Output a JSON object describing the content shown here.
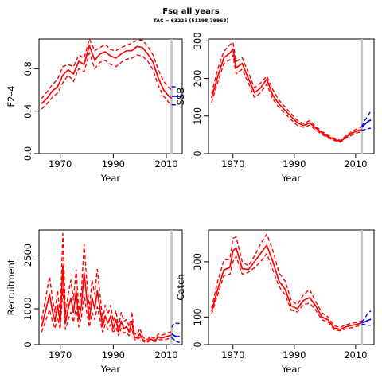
{
  "header": {
    "title": "Fsq all years",
    "subtitle": "TAC = 63225 (51198;79968)"
  },
  "colors": {
    "history": "#ff0000",
    "forecast": "#0000ff",
    "marker": "#c8c8c8"
  },
  "chart_data": [
    {
      "type": "line",
      "id": "fbar",
      "ylabel": "F̄2–4",
      "xlabel": "Year",
      "xlim": [
        1962,
        2016
      ],
      "ylim": [
        0,
        1.08
      ],
      "xticks": [
        1970,
        1990,
        2010
      ],
      "yticks": [
        0,
        0.4,
        0.8
      ],
      "ytick_labels": [
        "0.0",
        "0.4",
        "0.8"
      ],
      "marker_year": 2012,
      "series": [
        {
          "role": "history-median",
          "x": [
            1963,
            1965,
            1967,
            1969,
            1971,
            1973,
            1975,
            1977,
            1979,
            1981,
            1983,
            1985,
            1987,
            1989,
            1991,
            1993,
            1995,
            1997,
            1999,
            2001,
            2003,
            2005,
            2007,
            2009,
            2011,
            2012
          ],
          "y": [
            0.47,
            0.52,
            0.59,
            0.63,
            0.74,
            0.79,
            0.75,
            0.87,
            0.84,
            1.02,
            0.88,
            0.94,
            0.96,
            0.92,
            0.9,
            0.94,
            0.97,
            0.97,
            1.01,
            1.0,
            0.94,
            0.86,
            0.71,
            0.6,
            0.54,
            0.52
          ]
        },
        {
          "role": "history-upper",
          "x": [
            1963,
            1965,
            1967,
            1969,
            1971,
            1973,
            1975,
            1977,
            1979,
            1981,
            1983,
            1985,
            1987,
            1989,
            1991,
            1993,
            1995,
            1997,
            1999,
            2001,
            2003,
            2005,
            2007,
            2009,
            2011,
            2012
          ],
          "y": [
            0.52,
            0.58,
            0.65,
            0.7,
            0.82,
            0.84,
            0.82,
            0.93,
            0.9,
            1.08,
            0.97,
            1.0,
            1.03,
            0.98,
            0.97,
            1.0,
            1.02,
            1.04,
            1.07,
            1.07,
            1.01,
            0.93,
            0.79,
            0.68,
            0.62,
            0.6
          ]
        },
        {
          "role": "history-lower",
          "x": [
            1963,
            1965,
            1967,
            1969,
            1971,
            1973,
            1975,
            1977,
            1979,
            1981,
            1983,
            1985,
            1987,
            1989,
            1991,
            1993,
            1995,
            1997,
            1999,
            2001,
            2003,
            2005,
            2007,
            2009,
            2011,
            2012
          ],
          "y": [
            0.42,
            0.47,
            0.53,
            0.57,
            0.67,
            0.74,
            0.68,
            0.8,
            0.77,
            0.95,
            0.8,
            0.86,
            0.88,
            0.84,
            0.82,
            0.86,
            0.89,
            0.9,
            0.93,
            0.92,
            0.87,
            0.79,
            0.64,
            0.54,
            0.48,
            0.46
          ]
        },
        {
          "role": "forecast-median",
          "x": [
            2012,
            2016
          ],
          "y": [
            0.54,
            0.54
          ]
        },
        {
          "role": "forecast-upper",
          "x": [
            2012,
            2014
          ],
          "y": [
            0.63,
            0.63
          ]
        },
        {
          "role": "forecast-lower",
          "x": [
            2012,
            2014
          ],
          "y": [
            0.46,
            0.46
          ]
        }
      ]
    },
    {
      "type": "line",
      "id": "ssb",
      "ylabel": "SSB",
      "xlabel": "Year",
      "xlim": [
        1962,
        2016
      ],
      "ylim": [
        0,
        305
      ],
      "xticks": [
        1970,
        1990,
        2010
      ],
      "yticks": [
        0,
        100,
        200,
        300
      ],
      "ytick_labels": [
        "0",
        "100",
        "200",
        "300"
      ],
      "marker_year": 2012,
      "series": [
        {
          "role": "history-median",
          "x": [
            1963,
            1965,
            1967,
            1969,
            1970,
            1971,
            1973,
            1975,
            1977,
            1979,
            1981,
            1983,
            1985,
            1987,
            1989,
            1991,
            1993,
            1995,
            1997,
            1999,
            2001,
            2003,
            2005,
            2007,
            2009,
            2011,
            2012
          ],
          "y": [
            148,
            205,
            255,
            268,
            278,
            228,
            240,
            200,
            162,
            175,
            198,
            155,
            132,
            115,
            98,
            82,
            75,
            82,
            68,
            55,
            45,
            38,
            32,
            45,
            55,
            62,
            64
          ]
        },
        {
          "role": "history-upper",
          "x": [
            1963,
            1965,
            1967,
            1969,
            1970,
            1971,
            1973,
            1975,
            1977,
            1979,
            1981,
            1983,
            1985,
            1987,
            1989,
            1991,
            1993,
            1995,
            1997,
            1999,
            2001,
            2003,
            2005,
            2007,
            2009,
            2011,
            2012
          ],
          "y": [
            160,
            225,
            272,
            290,
            296,
            245,
            255,
            215,
            175,
            188,
            206,
            170,
            142,
            124,
            106,
            88,
            80,
            88,
            72,
            59,
            48,
            41,
            35,
            48,
            60,
            68,
            72
          ]
        },
        {
          "role": "history-lower",
          "x": [
            1963,
            1965,
            1967,
            1969,
            1970,
            1971,
            1973,
            1975,
            1977,
            1979,
            1981,
            1983,
            1985,
            1987,
            1989,
            1991,
            1993,
            1995,
            1997,
            1999,
            2001,
            2003,
            2005,
            2007,
            2009,
            2011,
            2012
          ],
          "y": [
            136,
            190,
            240,
            250,
            262,
            212,
            225,
            188,
            150,
            162,
            185,
            145,
            122,
            106,
            90,
            75,
            70,
            76,
            63,
            51,
            42,
            35,
            30,
            42,
            50,
            57,
            58
          ]
        },
        {
          "role": "forecast-median",
          "x": [
            2012,
            2013,
            2014,
            2015
          ],
          "y": [
            70,
            78,
            85,
            90
          ]
        },
        {
          "role": "forecast-upper",
          "x": [
            2012,
            2013,
            2014,
            2015
          ],
          "y": [
            72,
            88,
            100,
            115
          ]
        },
        {
          "role": "forecast-lower",
          "x": [
            2012,
            2013,
            2014,
            2015
          ],
          "y": [
            62,
            64,
            66,
            68
          ]
        }
      ]
    },
    {
      "type": "line",
      "id": "recruitment",
      "ylabel": "Recruitment",
      "xlabel": "Year",
      "xlim": [
        1962,
        2016
      ],
      "ylim": [
        0,
        3200
      ],
      "xticks": [
        1970,
        1990,
        2010
      ],
      "yticks": [
        0,
        1000,
        2500
      ],
      "ytick_labels": [
        "0",
        "1000",
        "2500"
      ],
      "marker_year": 2012,
      "series": [
        {
          "role": "history-median",
          "x": [
            1963,
            1964,
            1965,
            1966,
            1967,
            1968,
            1969,
            1970,
            1971,
            1972,
            1973,
            1974,
            1975,
            1976,
            1977,
            1978,
            1979,
            1980,
            1981,
            1982,
            1983,
            1984,
            1985,
            1986,
            1987,
            1988,
            1989,
            1990,
            1991,
            1992,
            1993,
            1994,
            1995,
            1996,
            1997,
            1998,
            1999,
            2000,
            2001,
            2002,
            2003,
            2004,
            2005,
            2006,
            2007,
            2008,
            2009,
            2010,
            2011,
            2012
          ],
          "y": [
            500,
            800,
            1100,
            1400,
            950,
            650,
            1100,
            600,
            2200,
            600,
            1000,
            1300,
            900,
            1500,
            700,
            1100,
            2000,
            1300,
            700,
            1300,
            1000,
            1500,
            1000,
            500,
            800,
            600,
            800,
            450,
            700,
            350,
            650,
            450,
            500,
            350,
            650,
            200,
            180,
            300,
            150,
            100,
            100,
            160,
            120,
            130,
            220,
            180,
            200,
            220,
            250,
            260
          ]
        },
        {
          "role": "history-upper",
          "x": [
            1963,
            1964,
            1965,
            1966,
            1967,
            1968,
            1969,
            1970,
            1971,
            1972,
            1973,
            1974,
            1975,
            1976,
            1977,
            1978,
            1979,
            1980,
            1981,
            1982,
            1983,
            1984,
            1985,
            1986,
            1987,
            1988,
            1989,
            1990,
            1991,
            1992,
            1993,
            1994,
            1995,
            1996,
            1997,
            1998,
            1999,
            2000,
            2001,
            2002,
            2003,
            2004,
            2005,
            2006,
            2007,
            2008,
            2009,
            2010,
            2011,
            2012
          ],
          "y": [
            700,
            1100,
            1500,
            1900,
            1300,
            900,
            1500,
            850,
            3100,
            850,
            1400,
            1800,
            1250,
            2100,
            950,
            1500,
            2800,
            1800,
            1000,
            1800,
            1400,
            2100,
            1400,
            700,
            1100,
            850,
            1100,
            650,
            950,
            500,
            900,
            650,
            700,
            500,
            900,
            300,
            280,
            450,
            230,
            150,
            150,
            230,
            180,
            190,
            300,
            260,
            280,
            300,
            340,
            360
          ]
        },
        {
          "role": "history-lower",
          "x": [
            1963,
            1964,
            1965,
            1966,
            1967,
            1968,
            1969,
            1970,
            1971,
            1972,
            1973,
            1974,
            1975,
            1976,
            1977,
            1978,
            1979,
            1980,
            1981,
            1982,
            1983,
            1984,
            1985,
            1986,
            1987,
            1988,
            1989,
            1990,
            1991,
            1992,
            1993,
            1994,
            1995,
            1996,
            1997,
            1998,
            1999,
            2000,
            2001,
            2002,
            2003,
            2004,
            2005,
            2006,
            2007,
            2008,
            2009,
            2010,
            2011,
            2012
          ],
          "y": [
            350,
            560,
            770,
            980,
            660,
            450,
            770,
            420,
            1550,
            420,
            700,
            900,
            630,
            1050,
            490,
            770,
            1400,
            900,
            490,
            900,
            700,
            1050,
            700,
            350,
            560,
            420,
            560,
            320,
            490,
            250,
            450,
            320,
            350,
            250,
            450,
            140,
            130,
            210,
            100,
            70,
            70,
            110,
            80,
            90,
            150,
            130,
            140,
            150,
            170,
            180
          ]
        },
        {
          "role": "forecast-median",
          "x": [
            2012,
            2013,
            2014,
            2015
          ],
          "y": [
            300,
            250,
            220,
            230
          ]
        },
        {
          "role": "forecast-upper",
          "x": [
            2012,
            2013,
            2014,
            2015
          ],
          "y": [
            480,
            600,
            590,
            590
          ]
        },
        {
          "role": "forecast-lower",
          "x": [
            2012,
            2013,
            2014,
            2015
          ],
          "y": [
            200,
            130,
            80,
            60
          ]
        }
      ]
    },
    {
      "type": "line",
      "id": "catch",
      "ylabel": "Catch",
      "xlabel": "Year",
      "xlim": [
        1962,
        2016
      ],
      "ylim": [
        0,
        415
      ],
      "xticks": [
        1970,
        1990,
        2010
      ],
      "yticks": [
        0,
        100,
        300
      ],
      "ytick_labels": [
        "0",
        "100",
        "300"
      ],
      "marker_year": 2012,
      "series": [
        {
          "role": "history-median",
          "x": [
            1963,
            1965,
            1967,
            1969,
            1970,
            1971,
            1973,
            1975,
            1977,
            1979,
            1981,
            1983,
            1985,
            1987,
            1989,
            1991,
            1993,
            1995,
            1997,
            1999,
            2001,
            2003,
            2005,
            2007,
            2009,
            2011,
            2012
          ],
          "y": [
            120,
            200,
            270,
            280,
            340,
            350,
            275,
            272,
            300,
            330,
            360,
            300,
            230,
            200,
            140,
            130,
            160,
            170,
            140,
            100,
            90,
            60,
            55,
            65,
            70,
            75,
            80
          ]
        },
        {
          "role": "history-upper",
          "x": [
            1963,
            1965,
            1967,
            1969,
            1970,
            1971,
            1973,
            1975,
            1977,
            1979,
            1981,
            1983,
            1985,
            1987,
            1989,
            1991,
            1993,
            1995,
            1997,
            1999,
            2001,
            2003,
            2005,
            2007,
            2009,
            2011,
            2012
          ],
          "y": [
            132,
            230,
            305,
            310,
            385,
            390,
            300,
            285,
            320,
            365,
            400,
            340,
            260,
            230,
            160,
            145,
            180,
            200,
            155,
            115,
            100,
            68,
            62,
            72,
            78,
            82,
            86
          ]
        },
        {
          "role": "history-lower",
          "x": [
            1963,
            1965,
            1967,
            1969,
            1970,
            1971,
            1973,
            1975,
            1977,
            1979,
            1981,
            1983,
            1985,
            1987,
            1989,
            1991,
            1993,
            1995,
            1997,
            1999,
            2001,
            2003,
            2005,
            2007,
            2009,
            2011,
            2012
          ],
          "y": [
            110,
            180,
            250,
            255,
            300,
            320,
            255,
            262,
            278,
            300,
            330,
            270,
            210,
            180,
            125,
            118,
            145,
            150,
            125,
            90,
            82,
            54,
            50,
            58,
            62,
            68,
            72
          ]
        },
        {
          "role": "forecast-median",
          "x": [
            2012,
            2013,
            2014,
            2015
          ],
          "y": [
            80,
            82,
            88,
            92
          ]
        },
        {
          "role": "forecast-upper",
          "x": [
            2012,
            2013,
            2014,
            2015
          ],
          "y": [
            82,
            95,
            115,
            122
          ]
        },
        {
          "role": "forecast-lower",
          "x": [
            2012,
            2013,
            2014,
            2015
          ],
          "y": [
            74,
            72,
            70,
            70
          ]
        }
      ]
    }
  ]
}
